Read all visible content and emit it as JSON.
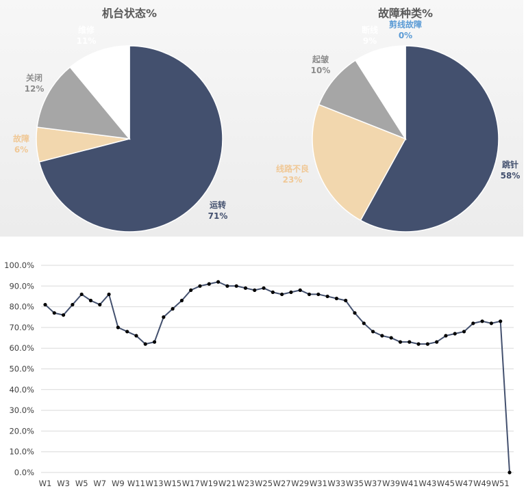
{
  "chart_data": [
    {
      "type": "pie",
      "title": "机台状态%",
      "slices": [
        {
          "label": "运转",
          "percent_label": "71%",
          "value": 71,
          "color": "#43506e",
          "label_color": "#43506e"
        },
        {
          "label": "故障",
          "percent_label": "6%",
          "value": 6,
          "color": "#f2d7ae",
          "label_color": "#f0c896"
        },
        {
          "label": "关闭",
          "percent_label": "12%",
          "value": 12,
          "color": "#a6a6a6",
          "label_color": "#8c8c8c"
        },
        {
          "label": "维修",
          "percent_label": "11%",
          "value": 11,
          "color": "#ffffff",
          "label_color": "#ffffff"
        }
      ]
    },
    {
      "type": "pie",
      "title": "故障种类%",
      "slices": [
        {
          "label": "跳针",
          "percent_label": "58%",
          "value": 58,
          "color": "#43506e",
          "label_color": "#43506e"
        },
        {
          "label": "线路不良",
          "percent_label": "23%",
          "value": 23,
          "color": "#f2d7ae",
          "label_color": "#f0c896"
        },
        {
          "label": "起皱",
          "percent_label": "10%",
          "value": 10,
          "color": "#a6a6a6",
          "label_color": "#8c8c8c"
        },
        {
          "label": "断线",
          "percent_label": "9%",
          "value": 9,
          "color": "#ffffff",
          "label_color": "#ffffff"
        },
        {
          "label": "剪线故障",
          "percent_label": "0%",
          "value": 0,
          "color": "#5b9bd5",
          "label_color": "#5b9bd5"
        }
      ]
    },
    {
      "type": "line",
      "title": "",
      "xlabel": "",
      "ylabel": "",
      "ylim": [
        0,
        100
      ],
      "yticks": [
        "0.0%",
        "10.0%",
        "20.0%",
        "30.0%",
        "40.0%",
        "50.0%",
        "60.0%",
        "70.0%",
        "80.0%",
        "90.0%",
        "100.0%"
      ],
      "xtick_labels": [
        "W1",
        "W3",
        "W5",
        "W7",
        "W9",
        "W11",
        "W13",
        "W15",
        "W17",
        "W19",
        "W21",
        "W23",
        "W25",
        "W27",
        "W29",
        "W31",
        "W33",
        "W35",
        "W37",
        "W39",
        "W41",
        "W43",
        "W45",
        "W47",
        "W49",
        "W51"
      ],
      "x": [
        "W1",
        "W2",
        "W3",
        "W4",
        "W5",
        "W6",
        "W7",
        "W8",
        "W9",
        "W10",
        "W11",
        "W12",
        "W13",
        "W14",
        "W15",
        "W16",
        "W17",
        "W18",
        "W19",
        "W20",
        "W21",
        "W22",
        "W23",
        "W24",
        "W25",
        "W26",
        "W27",
        "W28",
        "W29",
        "W30",
        "W31",
        "W32",
        "W33",
        "W34",
        "W35",
        "W36",
        "W37",
        "W38",
        "W39",
        "W40",
        "W41",
        "W42",
        "W43",
        "W44",
        "W45",
        "W46",
        "W47",
        "W48",
        "W49",
        "W50",
        "W51",
        "W52"
      ],
      "values": [
        81,
        77,
        76,
        81,
        86,
        83,
        81,
        86,
        70,
        68,
        66,
        62,
        63,
        75,
        79,
        83,
        88,
        90,
        91,
        92,
        90,
        90,
        89,
        88,
        89,
        87,
        86,
        87,
        88,
        86,
        86,
        85,
        84,
        83,
        77,
        72,
        68,
        66,
        65,
        63,
        63,
        62,
        62,
        63,
        66,
        67,
        68,
        72,
        73,
        72,
        73,
        0
      ],
      "line_color": "#43506e",
      "marker_color": "#000000",
      "grid": true
    }
  ]
}
